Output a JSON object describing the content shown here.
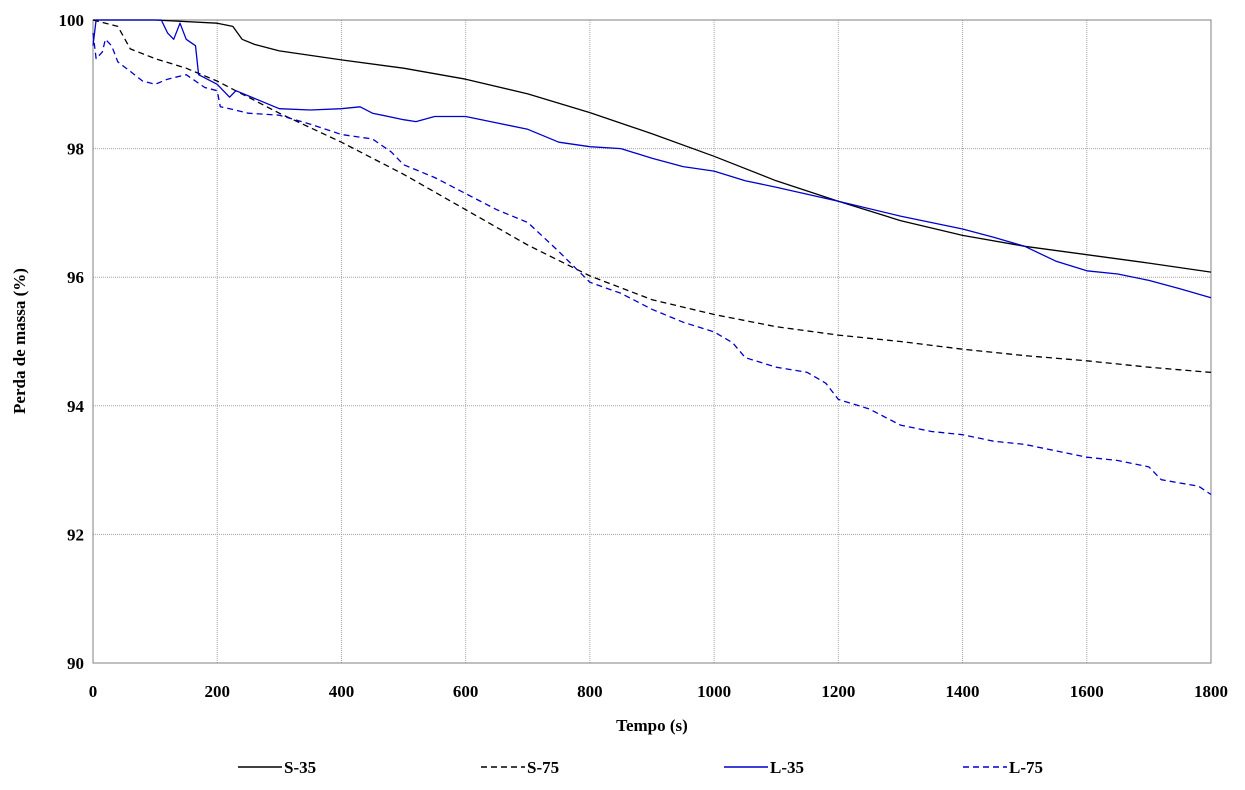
{
  "chart_data": {
    "type": "line",
    "xlabel": "Tempo (s)",
    "ylabel": "Perda de massa (%)",
    "xlim": [
      0,
      1800
    ],
    "ylim": [
      90,
      100
    ],
    "xticks": [
      "0",
      "200",
      "400",
      "600",
      "800",
      "1000",
      "1200",
      "1400",
      "1600",
      "1800"
    ],
    "yticks": [
      "90",
      "92",
      "94",
      "96",
      "98",
      "100"
    ],
    "grid": true,
    "legend_position": "bottom",
    "series": [
      {
        "name": "S-35",
        "color": "#000000",
        "dash": "solid",
        "points": [
          [
            0,
            100.0
          ],
          [
            100,
            100.0
          ],
          [
            200,
            99.95
          ],
          [
            225,
            99.9
          ],
          [
            240,
            99.7
          ],
          [
            260,
            99.62
          ],
          [
            300,
            99.52
          ],
          [
            350,
            99.45
          ],
          [
            400,
            99.38
          ],
          [
            500,
            99.25
          ],
          [
            600,
            99.08
          ],
          [
            700,
            98.85
          ],
          [
            800,
            98.56
          ],
          [
            900,
            98.23
          ],
          [
            1000,
            97.88
          ],
          [
            1100,
            97.5
          ],
          [
            1200,
            97.18
          ],
          [
            1300,
            96.88
          ],
          [
            1400,
            96.65
          ],
          [
            1500,
            96.48
          ],
          [
            1600,
            96.35
          ],
          [
            1700,
            96.22
          ],
          [
            1800,
            96.08
          ]
        ]
      },
      {
        "name": "S-75",
        "color": "#000000",
        "dash": "dashed",
        "points": [
          [
            0,
            100.0
          ],
          [
            40,
            99.9
          ],
          [
            60,
            99.55
          ],
          [
            100,
            99.4
          ],
          [
            150,
            99.25
          ],
          [
            200,
            99.05
          ],
          [
            300,
            98.55
          ],
          [
            400,
            98.1
          ],
          [
            500,
            97.6
          ],
          [
            600,
            97.05
          ],
          [
            700,
            96.5
          ],
          [
            800,
            96.02
          ],
          [
            900,
            95.65
          ],
          [
            1000,
            95.42
          ],
          [
            1100,
            95.23
          ],
          [
            1200,
            95.1
          ],
          [
            1300,
            95.0
          ],
          [
            1400,
            94.88
          ],
          [
            1500,
            94.78
          ],
          [
            1600,
            94.7
          ],
          [
            1700,
            94.6
          ],
          [
            1800,
            94.52
          ]
        ]
      },
      {
        "name": "L-35",
        "color": "#0000cc",
        "dash": "solid",
        "points": [
          [
            0,
            99.6
          ],
          [
            5,
            100.0
          ],
          [
            110,
            100.0
          ],
          [
            120,
            99.8
          ],
          [
            130,
            99.7
          ],
          [
            140,
            99.95
          ],
          [
            150,
            99.7
          ],
          [
            165,
            99.6
          ],
          [
            170,
            99.15
          ],
          [
            200,
            99.0
          ],
          [
            220,
            98.8
          ],
          [
            230,
            98.9
          ],
          [
            300,
            98.62
          ],
          [
            350,
            98.6
          ],
          [
            400,
            98.62
          ],
          [
            430,
            98.65
          ],
          [
            450,
            98.55
          ],
          [
            500,
            98.45
          ],
          [
            520,
            98.42
          ],
          [
            550,
            98.5
          ],
          [
            600,
            98.5
          ],
          [
            650,
            98.4
          ],
          [
            700,
            98.3
          ],
          [
            750,
            98.1
          ],
          [
            800,
            98.03
          ],
          [
            850,
            98.0
          ],
          [
            900,
            97.85
          ],
          [
            950,
            97.72
          ],
          [
            1000,
            97.65
          ],
          [
            1050,
            97.5
          ],
          [
            1100,
            97.4
          ],
          [
            1200,
            97.18
          ],
          [
            1300,
            96.95
          ],
          [
            1400,
            96.75
          ],
          [
            1450,
            96.62
          ],
          [
            1500,
            96.48
          ],
          [
            1550,
            96.25
          ],
          [
            1600,
            96.1
          ],
          [
            1650,
            96.05
          ],
          [
            1700,
            95.95
          ],
          [
            1750,
            95.82
          ],
          [
            1800,
            95.68
          ]
        ]
      },
      {
        "name": "L-75",
        "color": "#0000cc",
        "dash": "dashed",
        "points": [
          [
            0,
            99.8
          ],
          [
            5,
            99.4
          ],
          [
            15,
            99.5
          ],
          [
            20,
            99.7
          ],
          [
            30,
            99.6
          ],
          [
            40,
            99.35
          ],
          [
            60,
            99.2
          ],
          [
            80,
            99.05
          ],
          [
            100,
            99.0
          ],
          [
            120,
            99.08
          ],
          [
            150,
            99.15
          ],
          [
            180,
            98.95
          ],
          [
            200,
            98.9
          ],
          [
            205,
            98.65
          ],
          [
            220,
            98.62
          ],
          [
            250,
            98.55
          ],
          [
            300,
            98.52
          ],
          [
            350,
            98.38
          ],
          [
            400,
            98.22
          ],
          [
            450,
            98.15
          ],
          [
            480,
            97.95
          ],
          [
            500,
            97.75
          ],
          [
            550,
            97.55
          ],
          [
            600,
            97.3
          ],
          [
            650,
            97.05
          ],
          [
            700,
            96.85
          ],
          [
            750,
            96.4
          ],
          [
            800,
            95.92
          ],
          [
            850,
            95.75
          ],
          [
            900,
            95.5
          ],
          [
            950,
            95.3
          ],
          [
            1000,
            95.15
          ],
          [
            1030,
            94.98
          ],
          [
            1050,
            94.75
          ],
          [
            1100,
            94.6
          ],
          [
            1150,
            94.52
          ],
          [
            1180,
            94.35
          ],
          [
            1200,
            94.1
          ],
          [
            1250,
            93.95
          ],
          [
            1300,
            93.7
          ],
          [
            1350,
            93.6
          ],
          [
            1400,
            93.55
          ],
          [
            1450,
            93.45
          ],
          [
            1500,
            93.4
          ],
          [
            1550,
            93.3
          ],
          [
            1600,
            93.2
          ],
          [
            1650,
            93.15
          ],
          [
            1700,
            93.05
          ],
          [
            1720,
            92.85
          ],
          [
            1750,
            92.8
          ],
          [
            1780,
            92.75
          ],
          [
            1800,
            92.62
          ]
        ]
      }
    ]
  }
}
